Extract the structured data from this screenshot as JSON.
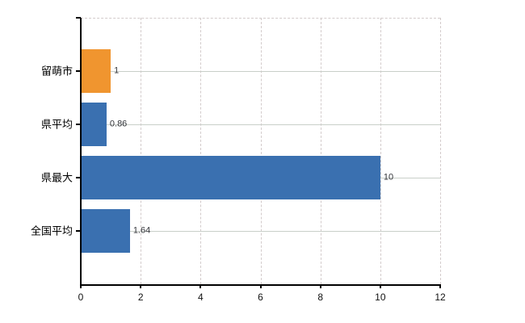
{
  "chart_data": {
    "type": "bar",
    "orientation": "horizontal",
    "title": "",
    "xlabel": "",
    "ylabel": "",
    "categories": [
      "留萌市",
      "県平均",
      "県最大",
      "全国平均"
    ],
    "values": [
      1,
      0.86,
      10,
      1.64
    ],
    "value_labels": [
      "1",
      "0.86",
      "10",
      "1.64"
    ],
    "bar_colors": [
      "#f0952f",
      "#3a70b0",
      "#3a70b0",
      "#3a70b0"
    ],
    "xlim": [
      0,
      12
    ],
    "x_ticks": [
      0,
      2,
      4,
      6,
      8,
      10,
      12
    ],
    "x_tick_labels": [
      "0",
      "2",
      "4",
      "6",
      "8",
      "10",
      "12"
    ],
    "legend": "none",
    "grid": {
      "vertical": "dashed",
      "horizontal": "solid",
      "top_border": "dashed",
      "y_axis_end_tick": true
    },
    "colors": {
      "grid_vertical": "#d3cbcb",
      "grid_horizontal": "#c9cfc9",
      "axis": "#000000",
      "value_label_text": "#33353a",
      "tick_label_text": "#111111",
      "background": "#ffffff"
    }
  }
}
